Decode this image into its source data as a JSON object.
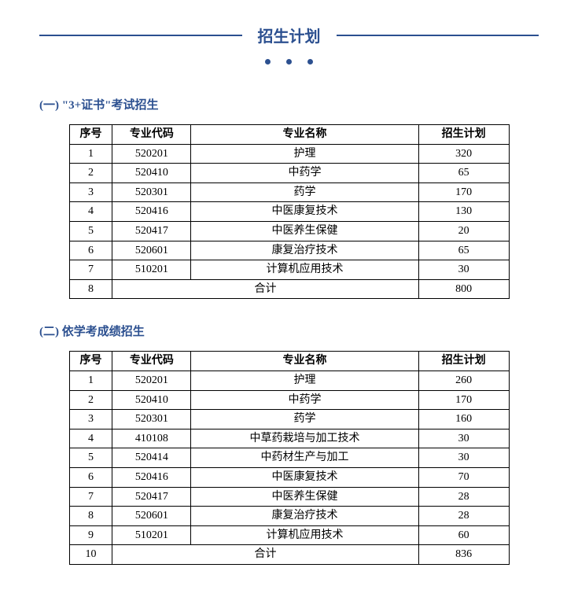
{
  "title": "招生计划",
  "section1": {
    "heading": "(一) \"3+证书\"考试招生",
    "table": {
      "headers": {
        "seq": "序号",
        "code": "专业代码",
        "name": "专业名称",
        "plan": "招生计划"
      },
      "rows": [
        {
          "seq": "1",
          "code": "520201",
          "name": "护理",
          "plan": "320"
        },
        {
          "seq": "2",
          "code": "520410",
          "name": "中药学",
          "plan": "65"
        },
        {
          "seq": "3",
          "code": "520301",
          "name": "药学",
          "plan": "170"
        },
        {
          "seq": "4",
          "code": "520416",
          "name": "中医康复技术",
          "plan": "130"
        },
        {
          "seq": "5",
          "code": "520417",
          "name": "中医养生保健",
          "plan": "20"
        },
        {
          "seq": "6",
          "code": "520601",
          "name": "康复治疗技术",
          "plan": "65"
        },
        {
          "seq": "7",
          "code": "510201",
          "name": "计算机应用技术",
          "plan": "30"
        }
      ],
      "total": {
        "seq": "8",
        "name": "合计",
        "plan": "800"
      }
    }
  },
  "section2": {
    "heading": "(二) 依学考成绩招生",
    "table": {
      "headers": {
        "seq": "序号",
        "code": "专业代码",
        "name": "专业名称",
        "plan": "招生计划"
      },
      "rows": [
        {
          "seq": "1",
          "code": "520201",
          "name": "护理",
          "plan": "260"
        },
        {
          "seq": "2",
          "code": "520410",
          "name": "中药学",
          "plan": "170"
        },
        {
          "seq": "3",
          "code": "520301",
          "name": "药学",
          "plan": "160"
        },
        {
          "seq": "4",
          "code": "410108",
          "name": "中草药栽培与加工技术",
          "plan": "30"
        },
        {
          "seq": "5",
          "code": "520414",
          "name": "中药材生产与加工",
          "plan": "30"
        },
        {
          "seq": "6",
          "code": "520416",
          "name": "中医康复技术",
          "plan": "70"
        },
        {
          "seq": "7",
          "code": "520417",
          "name": "中医养生保健",
          "plan": "28"
        },
        {
          "seq": "8",
          "code": "520601",
          "name": "康复治疗技术",
          "plan": "28"
        },
        {
          "seq": "9",
          "code": "510201",
          "name": "计算机应用技术",
          "plan": "60"
        }
      ],
      "total": {
        "seq": "10",
        "name": "合计",
        "plan": "836"
      }
    }
  },
  "colors": {
    "accent": "#2c5090",
    "border": "#000000",
    "background": "#ffffff"
  }
}
